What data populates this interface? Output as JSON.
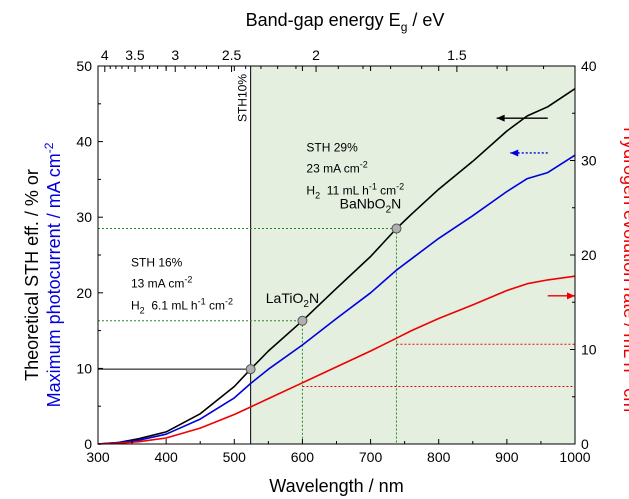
{
  "chart_data": {
    "type": "line",
    "xlabel": "Wavelength / nm",
    "xlim": [
      300,
      1000
    ],
    "x_ticks": [
      300,
      400,
      500,
      600,
      700,
      800,
      900,
      1000
    ],
    "top_axis": {
      "label_main": "Band-gap energy E",
      "label_sub": "g",
      "label_unit": " / eV",
      "ticks": [
        "4",
        "3.5",
        "3",
        "2.5",
        "2",
        "1.5"
      ],
      "tick_values": [
        4,
        3.5,
        3,
        2.5,
        2,
        1.5
      ]
    },
    "left_axis": {
      "label_black": "Theoretical STH eff. / % or",
      "label_blue": "Maximum photocurrent / mA cm",
      "label_blue_sup": "-2",
      "ylim": [
        0,
        50
      ],
      "ticks": [
        0,
        10,
        20,
        30,
        40,
        50
      ]
    },
    "right_axis": {
      "label": "Hydrogen evolution rate / mL h",
      "label_sup1": "-1",
      "label_mid": " cm",
      "label_sup2": "-2",
      "ylim": [
        0,
        40
      ],
      "ticks": [
        0,
        10,
        20,
        30,
        40
      ]
    },
    "series": [
      {
        "color": "#000000",
        "axis": "left",
        "x": [
          300,
          330,
          360,
          400,
          450,
          500,
          524,
          550,
          600,
          650,
          700,
          738,
          760,
          800,
          850,
          900,
          930,
          960,
          1000
        ],
        "values": [
          0,
          0.2,
          0.7,
          1.6,
          4.0,
          7.6,
          9.9,
          12.3,
          16.3,
          20.6,
          24.8,
          28.5,
          30.4,
          33.7,
          37.4,
          41.4,
          43.4,
          44.6,
          47.0
        ]
      },
      {
        "color": "#0000dd",
        "axis": "left",
        "x": [
          300,
          330,
          360,
          400,
          450,
          500,
          524,
          550,
          600,
          650,
          700,
          738,
          760,
          800,
          850,
          900,
          930,
          960,
          1000
        ],
        "values": [
          0,
          0.2,
          0.5,
          1.3,
          3.3,
          6.1,
          8.0,
          9.9,
          13.1,
          16.6,
          20.0,
          23.0,
          24.5,
          27.2,
          30.2,
          33.4,
          35.1,
          35.9,
          38.2
        ]
      },
      {
        "color": "#ee0000",
        "axis": "left",
        "x": [
          300,
          330,
          360,
          400,
          450,
          500,
          524,
          550,
          600,
          650,
          700,
          738,
          760,
          800,
          850,
          900,
          930,
          960,
          1000
        ],
        "values": [
          0,
          0.1,
          0.3,
          0.8,
          2.1,
          3.9,
          4.9,
          6.0,
          8.1,
          10.2,
          12.3,
          14.0,
          15.0,
          16.6,
          18.4,
          20.3,
          21.2,
          21.7,
          22.2
        ]
      }
    ],
    "shaded_region": {
      "x_from": 524,
      "x_to": 1000,
      "color": "#e4efe0"
    },
    "reference_lines": [
      {
        "kind": "vertical",
        "x": 524,
        "color": "#000000",
        "label": "STH10%"
      },
      {
        "kind": "horizontal",
        "y": 9.9,
        "x_from": 300,
        "x_to": 524,
        "color": "#000000"
      },
      {
        "kind": "horizontal",
        "y": 16.3,
        "x_from": 300,
        "x_to": 600,
        "color": "#2a8a2a"
      },
      {
        "kind": "horizontal",
        "y": 28.5,
        "x_from": 300,
        "x_to": 738,
        "color": "#2a8a2a"
      },
      {
        "kind": "vertical",
        "x": 600,
        "y_to": 16.3,
        "color": "#2a8a2a"
      },
      {
        "kind": "vertical",
        "x": 738,
        "y_to": 28.5,
        "color": "#2a8a2a"
      },
      {
        "kind": "horizontal",
        "y": 7.6,
        "x_from": 600,
        "x_to": 1000,
        "color": "#ee0000"
      },
      {
        "kind": "horizontal",
        "y": 13.2,
        "x_from": 738,
        "x_to": 1000,
        "color": "#ee0000"
      }
    ],
    "markers": [
      {
        "x": 524,
        "y": 9.9,
        "label": ""
      },
      {
        "x": 600,
        "y": 16.3,
        "label": "LaTiO",
        "sub": "2",
        "tail": "N"
      },
      {
        "x": 738,
        "y": 28.5,
        "label": "BaNbO",
        "sub": "2",
        "tail": "N"
      }
    ],
    "annotations": {
      "sth16": {
        "line1": "STH 16%",
        "line2_main": "13 mA cm",
        "line2_sup": "-2",
        "line3_a": "H",
        "line3_sub": "2",
        "line3_b": "  6.1 mL h",
        "line3_sup1": "-1",
        "line3_c": " cm",
        "line3_sup2": "-2"
      },
      "sth29": {
        "line1": "STH 29%",
        "line2_main": "23 mA cm",
        "line2_sup": "-2",
        "line3_a": "H",
        "line3_sub": "2",
        "line3_b": "  11 mL h",
        "line3_sup1": "-1",
        "line3_c": " cm",
        "line3_sup2": "-2"
      }
    },
    "arrows": [
      {
        "direction": "left",
        "color": "#000000",
        "y": 43.1,
        "x_from": 960,
        "x_to": 885
      },
      {
        "direction": "left",
        "color": "#0000dd",
        "y": 38.5,
        "x_from": 960,
        "x_to": 905,
        "dotted": true
      },
      {
        "direction": "right",
        "color": "#ee0000",
        "y": 19.6,
        "x_from": 960,
        "x_to": 1000
      }
    ],
    "grid": false
  }
}
